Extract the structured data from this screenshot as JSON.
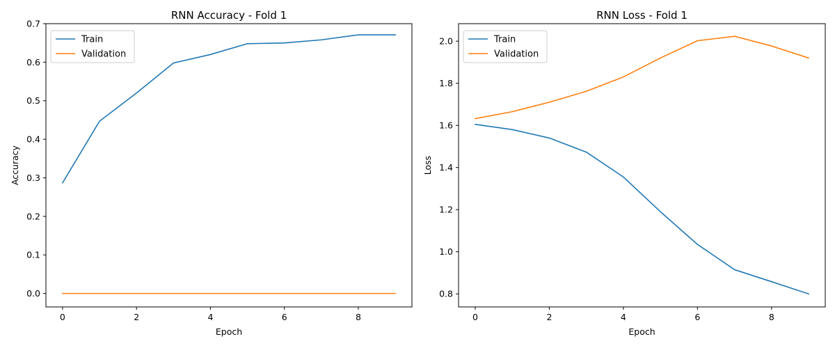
{
  "chart_data": [
    {
      "type": "line",
      "title": "RNN Accuracy - Fold 1",
      "xlabel": "Epoch",
      "ylabel": "Accuracy",
      "xlim": [
        -0.45,
        9.45
      ],
      "ylim": [
        -0.035,
        0.7
      ],
      "xticks": [
        0,
        2,
        4,
        6,
        8
      ],
      "xtick_labels": [
        "0",
        "2",
        "4",
        "6",
        "8"
      ],
      "yticks": [
        0.0,
        0.1,
        0.2,
        0.3,
        0.4,
        0.5,
        0.6,
        0.7
      ],
      "ytick_labels": [
        "0.0",
        "0.1",
        "0.2",
        "0.3",
        "0.4",
        "0.5",
        "0.6",
        "0.7"
      ],
      "grid": false,
      "legend": "upper-left",
      "x": [
        0,
        1,
        2,
        3,
        4,
        5,
        6,
        7,
        8,
        9
      ],
      "series": [
        {
          "name": "Train",
          "color": "#1f77b4",
          "values": [
            0.287,
            0.447,
            0.52,
            0.598,
            0.62,
            0.648,
            0.65,
            0.658,
            0.671,
            0.671
          ]
        },
        {
          "name": "Validation",
          "color": "#ff7f0e",
          "values": [
            0,
            0,
            0,
            0,
            0,
            0,
            0,
            0,
            0,
            0
          ]
        }
      ]
    },
    {
      "type": "line",
      "title": "RNN Loss - Fold 1",
      "xlabel": "Epoch",
      "ylabel": "Loss",
      "xlim": [
        -0.45,
        9.45
      ],
      "ylim": [
        0.738,
        2.083
      ],
      "xticks": [
        0,
        2,
        4,
        6,
        8
      ],
      "xtick_labels": [
        "0",
        "2",
        "4",
        "6",
        "8"
      ],
      "yticks": [
        0.8,
        1.0,
        1.2,
        1.4,
        1.6,
        1.8,
        2.0
      ],
      "ytick_labels": [
        "0.8",
        "1.0",
        "1.2",
        "1.4",
        "1.6",
        "1.8",
        "2.0"
      ],
      "grid": false,
      "legend": "upper-left",
      "x": [
        0,
        1,
        2,
        3,
        4,
        5,
        6,
        7,
        8,
        9
      ],
      "series": [
        {
          "name": "Train",
          "color": "#1f77b4",
          "values": [
            1.605,
            1.58,
            1.54,
            1.473,
            1.355,
            1.19,
            1.035,
            0.915,
            0.858,
            0.8
          ]
        },
        {
          "name": "Validation",
          "color": "#ff7f0e",
          "values": [
            1.632,
            1.665,
            1.71,
            1.762,
            1.83,
            1.92,
            2.002,
            2.023,
            1.977,
            1.92
          ]
        }
      ]
    }
  ]
}
